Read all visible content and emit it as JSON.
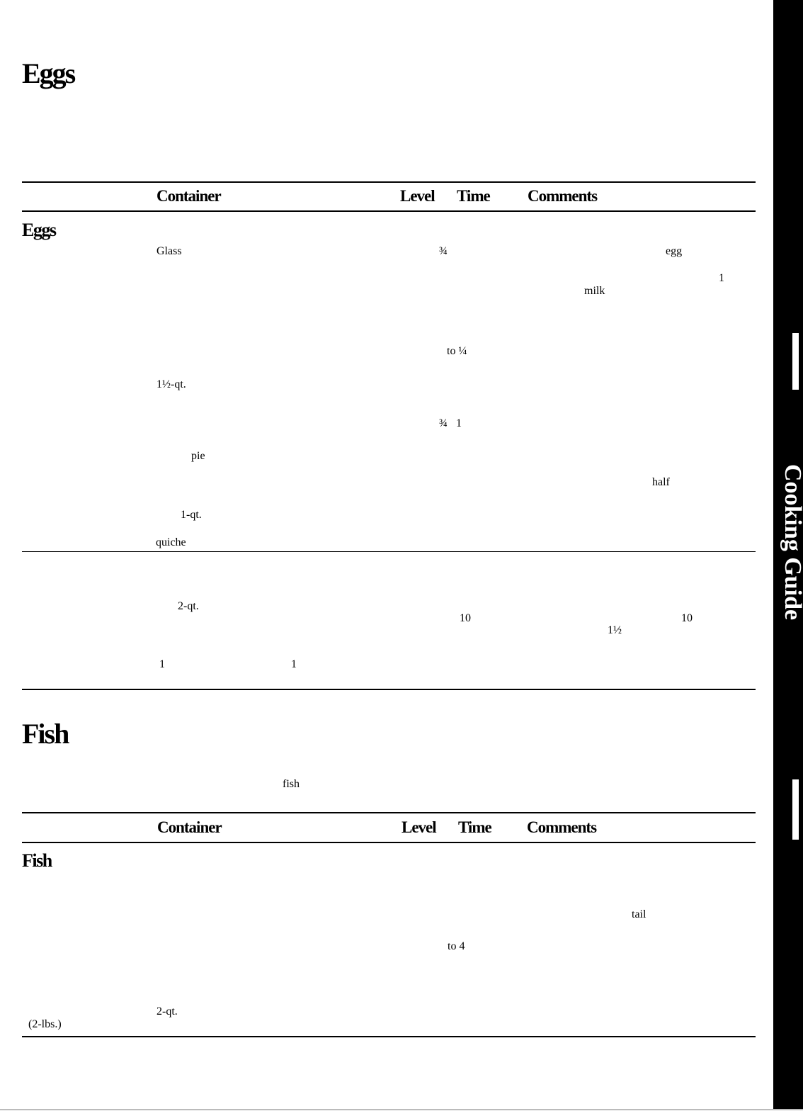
{
  "eggs_section": {
    "title": "Eggs",
    "header": {
      "container": "Container",
      "level": "Level",
      "time": "Time",
      "comments": "Comments"
    },
    "group_title": "Eggs",
    "fragments": {
      "glass": "Glass",
      "three_quarter": "¾",
      "egg": "egg",
      "one": "1",
      "milk": "milk",
      "to_quarter": "to ¼",
      "one_half_qt": "1½-qt.",
      "three_quarter_one": "¾   1",
      "pie": "pie",
      "half": "half",
      "one_qt": "1-qt.",
      "quiche": "quiche",
      "two_qt": "2-qt.",
      "ten_a": "10",
      "ten_b": "10",
      "one_half": "1½",
      "one_a": "1",
      "one_b": "1"
    }
  },
  "fish_section": {
    "title": "Fish",
    "intro_fragment": "fish",
    "header": {
      "container": "Container",
      "level": "Level",
      "time": "Time",
      "comments": "Comments"
    },
    "group_title": "Fish",
    "fragments": {
      "tail": "tail",
      "to_four": "to 4",
      "two_qt": "2-qt.",
      "two_lbs": "(2-lbs.)"
    }
  },
  "side_tab": {
    "label": "Cooking Guide"
  }
}
